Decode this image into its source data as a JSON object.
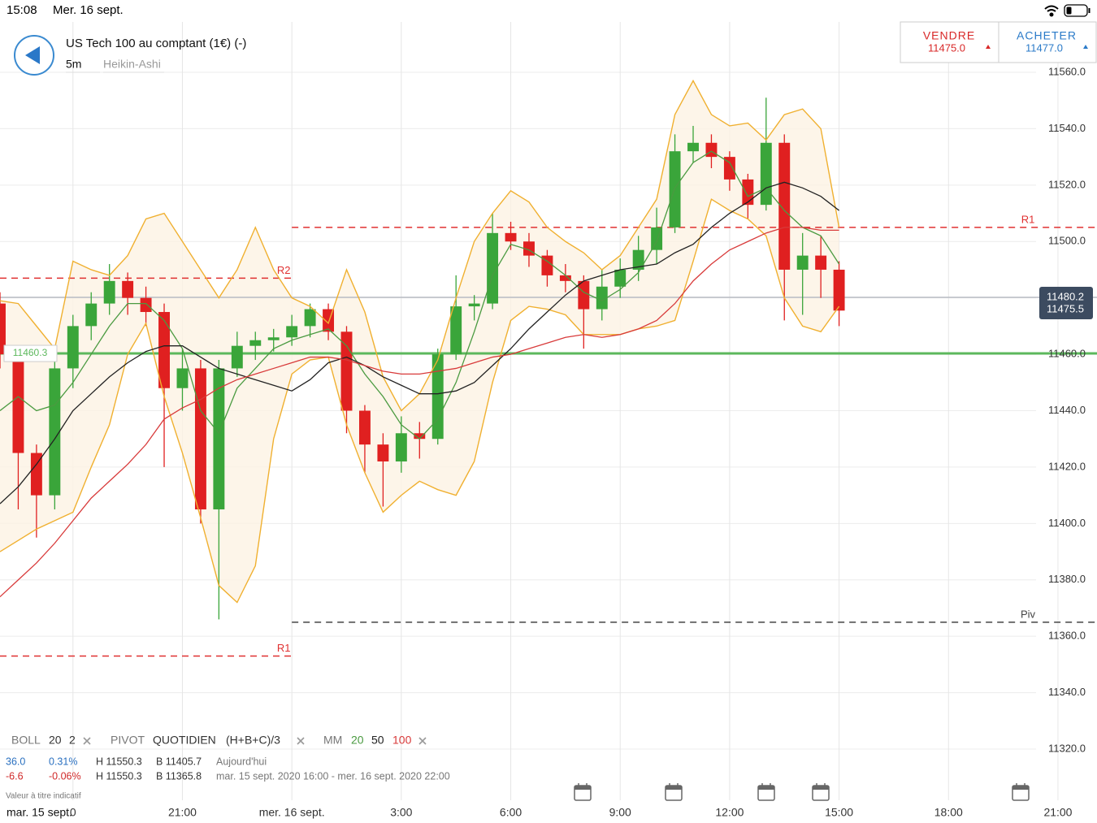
{
  "status_bar": {
    "time": "15:08",
    "date": "Mer. 16 sept."
  },
  "header": {
    "title": "US Tech 100 au comptant (1€) (-)",
    "interval": "5m",
    "chart_style": "Heikin-Ashi"
  },
  "quote": {
    "sell_label": "VENDRE",
    "sell_price": "11475.0",
    "buy_label": "ACHETER",
    "buy_price": "11477.0"
  },
  "chart_data": {
    "type": "candlestick",
    "x": [
      16,
      16.5,
      17,
      17.5,
      18,
      18.5,
      19,
      19.5,
      20,
      20.5,
      21,
      21.5,
      22,
      22.5,
      23,
      23.5,
      24,
      24.5,
      25,
      25.5,
      26,
      26.5,
      27,
      27.5,
      28,
      28.5,
      29,
      29.5,
      30,
      30.5,
      31,
      31.5,
      32,
      32.5,
      33,
      33.5,
      34,
      34.5,
      35,
      35.5,
      36,
      36.5,
      37,
      37.5,
      38,
      38.5,
      39
    ],
    "open": [
      11478,
      11460,
      11425,
      11410,
      11455,
      11470,
      11478,
      11486,
      11480,
      11475,
      11448,
      11455,
      11405,
      11455,
      11463,
      11465,
      11466,
      11470,
      11476,
      11468,
      11440,
      11428,
      11422,
      11432,
      11430,
      11460,
      11477,
      11478,
      11503,
      11500,
      11495,
      11488,
      11486,
      11476,
      11484,
      11490,
      11497,
      11505,
      11532,
      11535,
      11530,
      11522,
      11513,
      11535,
      11490,
      11495,
      11490
    ],
    "high": [
      11482,
      11463,
      11428,
      11458,
      11474,
      11482,
      11492,
      11489,
      11484,
      11478,
      11462,
      11458,
      11458,
      11468,
      11468,
      11469,
      11474,
      11478,
      11478,
      11470,
      11442,
      11432,
      11438,
      11436,
      11462,
      11488,
      11481,
      11510,
      11507,
      11503,
      11497,
      11492,
      11488,
      11490,
      11494,
      11502,
      11512,
      11538,
      11541,
      11538,
      11532,
      11524,
      11551,
      11538,
      11503,
      11502,
      11493
    ],
    "low": [
      11455,
      11405,
      11395,
      11405,
      11448,
      11465,
      11474,
      11474,
      11470,
      11420,
      11440,
      11400,
      11366,
      11452,
      11458,
      11461,
      11463,
      11466,
      11465,
      11432,
      11418,
      11406,
      11418,
      11423,
      11428,
      11458,
      11472,
      11476,
      11497,
      11491,
      11484,
      11482,
      11462,
      11472,
      11480,
      11486,
      11492,
      11503,
      11528,
      11526,
      11518,
      11508,
      11511,
      11472,
      11474,
      11480,
      11470
    ],
    "close": [
      11460,
      11425,
      11410,
      11455,
      11470,
      11478,
      11486,
      11480,
      11475,
      11448,
      11455,
      11405,
      11455,
      11463,
      11465,
      11466,
      11470,
      11476,
      11468,
      11440,
      11428,
      11422,
      11432,
      11430,
      11460,
      11477,
      11478,
      11503,
      11500,
      11495,
      11488,
      11486,
      11476,
      11484,
      11490,
      11497,
      11505,
      11532,
      11535,
      11530,
      11522,
      11513,
      11535,
      11490,
      11495,
      11490,
      11475.5
    ],
    "up_color": "#3aa53a",
    "down_color": "#e02020",
    "series": [
      {
        "name": "20",
        "color": "#4a9a40",
        "values": [
          11440,
          11445,
          11440,
          11442,
          11450,
          11460,
          11470,
          11478,
          11478,
          11472,
          11462,
          11440,
          11432,
          11448,
          11455,
          11462,
          11465,
          11467,
          11469,
          11463,
          11453,
          11445,
          11435,
          11430,
          11437,
          11450,
          11468,
          11488,
          11499,
          11497,
          11493,
          11488,
          11482,
          11479,
          11483,
          11489,
          11500,
          11519,
          11528,
          11532,
          11528,
          11516,
          11519,
          11511,
          11505,
          11502,
          11492
        ]
      },
      {
        "name": "50",
        "color": "#222222",
        "values": [
          11407,
          11413,
          11421,
          11430,
          11440,
          11446,
          11452,
          11457,
          11461,
          11463,
          11463,
          11459,
          11455,
          11453,
          11451,
          11449,
          11447,
          11451,
          11457,
          11459,
          11456,
          11452,
          11449,
          11446,
          11446,
          11447,
          11450,
          11456,
          11462,
          11469,
          11475,
          11481,
          11486,
          11488,
          11490,
          11491,
          11492,
          11496,
          11499,
          11505,
          11510,
          11514,
          11519,
          11521,
          11519,
          11516,
          11511
        ]
      },
      {
        "name": "100",
        "color": "#d83a3a",
        "values": [
          11374,
          11380,
          11386,
          11393,
          11401,
          11409,
          11415,
          11421,
          11428,
          11437,
          11441,
          11444,
          11448,
          11451,
          11453,
          11455,
          11457,
          11459,
          11459,
          11458,
          11456,
          11454,
          11453,
          11453,
          11454,
          11455,
          11457,
          11459,
          11460,
          11462,
          11464,
          11466,
          11467,
          11466,
          11467,
          11469,
          11472,
          11478,
          11486,
          11492,
          11497,
          11500,
          11503,
          11505,
          11505,
          11504,
          11504
        ]
      }
    ],
    "bollinger": {
      "color": "#f0b030",
      "fill": "#fdf3e3",
      "upper": [
        11479,
        11478,
        11470,
        11462,
        11493,
        11490,
        11488,
        11495,
        11508,
        11510,
        11500,
        11490,
        11480,
        11490,
        11505,
        11490,
        11480,
        11477,
        11471,
        11490,
        11475,
        11452,
        11440,
        11446,
        11458,
        11480,
        11500,
        11510,
        11518,
        11514,
        11505,
        11500,
        11496,
        11490,
        11495,
        11505,
        11515,
        11545,
        11557,
        11545,
        11541,
        11542,
        11536,
        11545,
        11547,
        11540,
        11505
      ],
      "lower": [
        11390,
        11394,
        11398,
        11401,
        11404,
        11420,
        11435,
        11460,
        11471,
        11445,
        11425,
        11402,
        11378,
        11372,
        11385,
        11430,
        11453,
        11458,
        11459,
        11435,
        11418,
        11404,
        11410,
        11415,
        11412,
        11410,
        11422,
        11450,
        11472,
        11477,
        11476,
        11474,
        11467,
        11467,
        11467,
        11469,
        11470,
        11472,
        11493,
        11515,
        11511,
        11508,
        11502,
        11480,
        11470,
        11468,
        11477
      ]
    },
    "levels": [
      {
        "name": "R2",
        "value": 11487,
        "x_range": [
          16,
          24
        ],
        "color": "#e03030",
        "dash": true
      },
      {
        "name": "R1",
        "value": 11353,
        "x_range": [
          16,
          24
        ],
        "color": "#e03030",
        "dash": true
      },
      {
        "name": "R1",
        "value": 11505,
        "x_range": [
          24,
          46.07
        ],
        "color": "#e03030",
        "dash": true
      },
      {
        "name": "Piv",
        "value": 11365,
        "x_range": [
          24,
          46.07
        ],
        "color": "#444444",
        "dash": true
      },
      {
        "value": 11460.3,
        "x_range": [
          16,
          46.07
        ],
        "color": "#5cb85c",
        "dash": false
      },
      {
        "value": 11480.2,
        "x_range": [
          16,
          46.07
        ],
        "color": "#b8bcc4",
        "dash": false
      }
    ],
    "xlim": [
      16,
      46.07
    ],
    "xticks": [
      {
        "value": 18,
        "label": "0"
      },
      {
        "value": 21,
        "label": "21:00"
      },
      {
        "value": 24,
        "label": "mer. 16 sept."
      },
      {
        "value": 27,
        "label": "3:00"
      },
      {
        "value": 30,
        "label": "6:00"
      },
      {
        "value": 33,
        "label": "9:00"
      },
      {
        "value": 36,
        "label": "12:00"
      },
      {
        "value": 39,
        "label": "15:00"
      },
      {
        "value": 42,
        "label": "18:00"
      },
      {
        "value": 45,
        "label": "21:00"
      }
    ],
    "x_date_label": "mar. 15 sept.",
    "ylim": [
      11320,
      11560
    ],
    "yticks": [
      {
        "value": 11320,
        "label": "11320.0"
      },
      {
        "value": 11340,
        "label": "11340.0"
      },
      {
        "value": 11360,
        "label": "11360.0"
      },
      {
        "value": 11380,
        "label": "11380.0"
      },
      {
        "value": 11400,
        "label": "11400.0"
      },
      {
        "value": 11420,
        "label": "11420.0"
      },
      {
        "value": 11440,
        "label": "11440.0"
      },
      {
        "value": 11460,
        "label": "11460.0"
      },
      {
        "value": 11480,
        "label": "11480.0"
      },
      {
        "value": 11500,
        "label": "11500.0"
      },
      {
        "value": 11520,
        "label": "11520.0"
      },
      {
        "value": 11540,
        "label": "11540.0"
      },
      {
        "value": 11560,
        "label": "11560.0"
      }
    ],
    "grid": true
  },
  "legend": {
    "boll": {
      "label": "BOLL",
      "params": [
        "20",
        "2"
      ]
    },
    "pivot": {
      "label": "PIVOT",
      "params": [
        "QUOTIDIEN",
        "(H+B+C)/3"
      ]
    },
    "mm": {
      "label": "MM"
    }
  },
  "info": {
    "rows": [
      [
        "36.0",
        "0.31%",
        "H 11550.3",
        "B 11405.7",
        "Aujourd'hui"
      ],
      [
        "-6.6",
        "-0.06%",
        "H 11550.3",
        "B 11365.8",
        "mar. 15 sept. 2020 16:00 - mer. 16 sept. 2020 22:00"
      ]
    ],
    "note": "Valeur à titre indicatif"
  }
}
